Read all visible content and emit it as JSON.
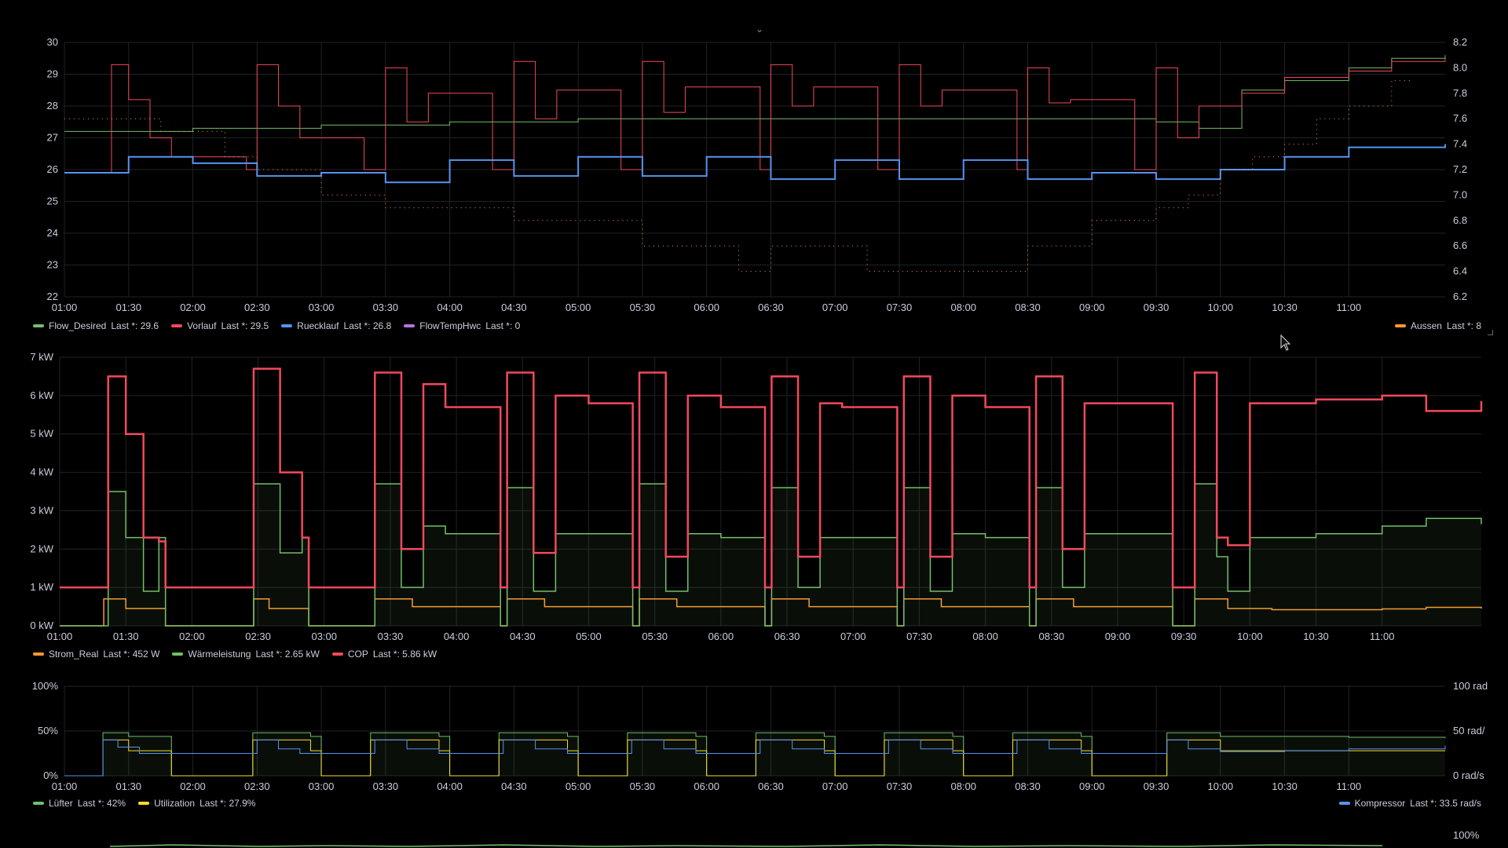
{
  "panels": [
    {
      "id": "temps",
      "x_ticks": [
        "01:00",
        "01:30",
        "02:00",
        "02:30",
        "03:00",
        "03:30",
        "04:00",
        "04:30",
        "05:00",
        "05:30",
        "06:00",
        "06:30",
        "07:00",
        "07:30",
        "08:00",
        "08:30",
        "09:00",
        "09:30",
        "10:00",
        "10:30",
        "11:00"
      ],
      "y_left_ticks": [
        "22",
        "23",
        "24",
        "25",
        "26",
        "27",
        "28",
        "29",
        "30"
      ],
      "y_right_ticks": [
        "6.2",
        "6.4",
        "6.6",
        "6.8",
        "7.0",
        "7.2",
        "7.4",
        "7.6",
        "7.8",
        "8.0",
        "8.2"
      ],
      "legend_left": [
        {
          "name": "Flow_Desired",
          "value": "Last *: 29.6",
          "color": "#73bf69"
        },
        {
          "name": "Vorlauf",
          "value": "Last *: 29.5",
          "color": "#f2495c"
        },
        {
          "name": "Ruecklauf",
          "value": "Last *: 26.8",
          "color": "#5794f2"
        },
        {
          "name": "FlowTempHwc",
          "value": "Last *: 0",
          "color": "#b877d9"
        }
      ],
      "legend_right": [
        {
          "name": "Aussen",
          "value": "Last *: 8",
          "color": "#ff9830"
        }
      ]
    },
    {
      "id": "power",
      "x_ticks": [
        "01:00",
        "01:30",
        "02:00",
        "02:30",
        "03:00",
        "03:30",
        "04:00",
        "04:30",
        "05:00",
        "05:30",
        "06:00",
        "06:30",
        "07:00",
        "07:30",
        "08:00",
        "08:30",
        "09:00",
        "09:30",
        "10:00",
        "10:30",
        "11:00"
      ],
      "y_left_ticks": [
        "0 kW",
        "1 kW",
        "2 kW",
        "3 kW",
        "4 kW",
        "5 kW",
        "6 kW",
        "7 kW"
      ],
      "legend_left": [
        {
          "name": "Strom_Real",
          "value": "Last *: 452 W",
          "color": "#ff9830"
        },
        {
          "name": "Wärmeleistung",
          "value": "Last *: 2.65 kW",
          "color": "#73bf69"
        },
        {
          "name": "COP",
          "value": "Last *: 5.86 kW",
          "color": "#f2495c"
        }
      ]
    },
    {
      "id": "util",
      "x_ticks": [
        "01:00",
        "01:30",
        "02:00",
        "02:30",
        "03:00",
        "03:30",
        "04:00",
        "04:30",
        "05:00",
        "05:30",
        "06:00",
        "06:30",
        "07:00",
        "07:30",
        "08:00",
        "08:30",
        "09:00",
        "09:30",
        "10:00",
        "10:30",
        "11:00"
      ],
      "y_left_ticks": [
        "0%",
        "50%",
        "100%"
      ],
      "y_right_ticks": [
        "0 rad/s",
        "50 rad/",
        "100 rad"
      ],
      "legend_left": [
        {
          "name": "Lüfter",
          "value": "Last *: 42%",
          "color": "#73bf69"
        },
        {
          "name": "Utilization",
          "value": "Last *: 27.9%",
          "color": "#fade2a"
        }
      ],
      "legend_right": [
        {
          "name": "Kompressor",
          "value": "Last *: 33.5 rad/s",
          "color": "#5794f2"
        }
      ]
    },
    {
      "id": "bottom",
      "y_right_ticks": [
        "100%"
      ]
    }
  ],
  "chart_data": [
    {
      "type": "line",
      "x_unit": "time",
      "x_range": [
        "01:00",
        "11:45"
      ],
      "ylim_left": [
        22,
        30
      ],
      "ylim_right": [
        6.2,
        8.2
      ],
      "grid": true,
      "legend_placement": "bottom",
      "series": [
        {
          "name": "Flow_Desired",
          "axis": "left",
          "x": [
            "01:00",
            "02:00",
            "03:00",
            "04:00",
            "05:00",
            "06:00",
            "07:00",
            "08:00",
            "09:00",
            "09:30",
            "09:50",
            "10:10",
            "10:30",
            "11:00",
            "11:20",
            "11:45"
          ],
          "values": [
            27.2,
            27.3,
            27.4,
            27.5,
            27.6,
            27.6,
            27.6,
            27.6,
            27.6,
            27.5,
            27.3,
            28.5,
            28.8,
            29.2,
            29.5,
            29.6
          ]
        },
        {
          "name": "Vorlauf",
          "axis": "left",
          "x": [
            "01:00",
            "01:18",
            "01:22",
            "01:30",
            "01:40",
            "01:50",
            "02:25",
            "02:30",
            "02:40",
            "02:50",
            "03:20",
            "03:30",
            "03:40",
            "03:50",
            "04:20",
            "04:30",
            "04:40",
            "04:50",
            "05:20",
            "05:30",
            "05:40",
            "05:50",
            "06:25",
            "06:30",
            "06:40",
            "06:50",
            "07:20",
            "07:30",
            "07:40",
            "07:50",
            "08:25",
            "08:30",
            "08:40",
            "08:50",
            "09:20",
            "09:30",
            "09:40",
            "09:50",
            "10:10",
            "10:30",
            "11:00",
            "11:20",
            "11:45"
          ],
          "values": [
            25.9,
            25.9,
            29.3,
            28.2,
            27.0,
            26.4,
            26.0,
            29.3,
            28.0,
            27.0,
            26.0,
            29.2,
            27.5,
            28.4,
            26.0,
            29.4,
            27.6,
            28.5,
            26.0,
            29.4,
            27.8,
            28.6,
            26.0,
            29.3,
            28.0,
            28.6,
            26.0,
            29.3,
            28.0,
            28.5,
            26.0,
            29.2,
            28.1,
            28.2,
            26.0,
            29.2,
            27.0,
            28.0,
            28.4,
            28.9,
            29.1,
            29.4,
            29.5
          ]
        },
        {
          "name": "Ruecklauf",
          "axis": "left",
          "x": [
            "01:00",
            "01:30",
            "02:00",
            "02:30",
            "03:00",
            "03:30",
            "04:00",
            "04:30",
            "05:00",
            "05:30",
            "06:00",
            "06:30",
            "07:00",
            "07:30",
            "08:00",
            "08:30",
            "09:00",
            "09:30",
            "10:00",
            "10:30",
            "11:00",
            "11:45"
          ],
          "values": [
            25.9,
            26.4,
            26.2,
            25.8,
            25.9,
            25.6,
            26.3,
            25.8,
            26.4,
            25.8,
            26.4,
            25.7,
            26.3,
            25.7,
            26.3,
            25.7,
            25.9,
            25.7,
            26.0,
            26.4,
            26.7,
            26.8
          ]
        },
        {
          "name": "FlowTempHwc",
          "axis": "left",
          "x": [],
          "values": []
        },
        {
          "name": "Aussen",
          "axis": "right",
          "x": [
            "01:00",
            "01:30",
            "01:45",
            "02:15",
            "02:30",
            "03:00",
            "03:30",
            "04:30",
            "05:30",
            "06:15",
            "06:30",
            "07:15",
            "08:30",
            "09:00",
            "09:30",
            "09:45",
            "10:00",
            "10:15",
            "10:30",
            "10:45",
            "11:00",
            "11:20",
            "11:30"
          ],
          "values": [
            7.6,
            7.6,
            7.5,
            7.3,
            7.2,
            7.0,
            6.9,
            6.8,
            6.6,
            6.4,
            6.6,
            6.4,
            6.6,
            6.8,
            6.9,
            7.0,
            7.2,
            7.3,
            7.4,
            7.6,
            7.7,
            7.9,
            7.9
          ]
        }
      ]
    },
    {
      "type": "area",
      "x_unit": "time",
      "x_range": [
        "01:00",
        "11:45"
      ],
      "ylim": [
        0,
        7
      ],
      "y_unit": "kW",
      "grid": true,
      "legend_placement": "bottom",
      "series": [
        {
          "name": "Strom_Real",
          "x": [
            "01:00",
            "01:18",
            "01:20",
            "01:30",
            "01:45",
            "01:48",
            "02:25",
            "02:28",
            "02:35",
            "02:50",
            "02:53",
            "03:20",
            "03:23",
            "03:40",
            "03:55",
            "04:20",
            "04:23",
            "04:40",
            "05:00",
            "05:20",
            "05:23",
            "05:40",
            "06:00",
            "06:20",
            "06:23",
            "06:40",
            "06:55",
            "07:20",
            "07:23",
            "07:40",
            "08:00",
            "08:20",
            "08:23",
            "08:40",
            "09:00",
            "09:25",
            "09:30",
            "09:35",
            "09:50",
            "10:10",
            "10:30",
            "11:00",
            "11:20",
            "11:45"
          ],
          "values": [
            0,
            0,
            0.7,
            0.45,
            0.45,
            0,
            0,
            0.7,
            0.45,
            0.45,
            0,
            0,
            0.7,
            0.5,
            0.5,
            0,
            0.7,
            0.5,
            0.5,
            0,
            0.7,
            0.5,
            0.5,
            0,
            0.7,
            0.5,
            0.5,
            0,
            0.7,
            0.5,
            0.5,
            0,
            0.7,
            0.5,
            0.5,
            0,
            0,
            0.7,
            0.45,
            0.42,
            0.42,
            0.44,
            0.48,
            0.45
          ]
        },
        {
          "name": "Wärmeleistung",
          "x": [
            "01:00",
            "01:18",
            "01:22",
            "01:30",
            "01:38",
            "01:45",
            "01:48",
            "02:25",
            "02:28",
            "02:40",
            "02:50",
            "02:53",
            "03:20",
            "03:23",
            "03:35",
            "03:45",
            "03:55",
            "04:20",
            "04:23",
            "04:35",
            "04:45",
            "05:00",
            "05:20",
            "05:23",
            "05:35",
            "05:45",
            "06:00",
            "06:20",
            "06:23",
            "06:35",
            "06:45",
            "06:55",
            "07:20",
            "07:23",
            "07:35",
            "07:45",
            "08:00",
            "08:20",
            "08:23",
            "08:35",
            "08:45",
            "09:25",
            "09:30",
            "09:35",
            "09:45",
            "09:50",
            "10:00",
            "10:30",
            "11:00",
            "11:20",
            "11:45"
          ],
          "values": [
            0,
            0,
            3.5,
            2.3,
            0.9,
            2.3,
            0,
            0,
            3.7,
            1.9,
            2.3,
            0,
            0,
            3.7,
            1.0,
            2.6,
            2.4,
            0,
            3.6,
            0.9,
            2.4,
            2.4,
            0,
            3.7,
            0.9,
            2.4,
            2.3,
            0,
            3.6,
            1.0,
            2.3,
            2.3,
            0,
            3.6,
            0.9,
            2.4,
            2.3,
            0,
            3.6,
            1.0,
            2.4,
            0,
            0,
            3.7,
            1.8,
            0.9,
            2.3,
            2.4,
            2.6,
            2.8,
            2.65
          ]
        },
        {
          "name": "COP",
          "x": [
            "01:00",
            "01:18",
            "01:22",
            "01:30",
            "01:38",
            "01:45",
            "01:48",
            "02:25",
            "02:28",
            "02:40",
            "02:50",
            "02:53",
            "03:20",
            "03:23",
            "03:35",
            "03:45",
            "03:55",
            "04:20",
            "04:23",
            "04:35",
            "04:45",
            "05:00",
            "05:20",
            "05:23",
            "05:35",
            "05:45",
            "06:00",
            "06:20",
            "06:23",
            "06:35",
            "06:45",
            "06:55",
            "07:20",
            "07:23",
            "07:35",
            "07:45",
            "08:00",
            "08:20",
            "08:23",
            "08:35",
            "08:45",
            "09:25",
            "09:30",
            "09:35",
            "09:45",
            "09:50",
            "10:00",
            "10:30",
            "11:00",
            "11:20",
            "11:45"
          ],
          "values": [
            1.0,
            1.0,
            6.5,
            5.0,
            2.3,
            2.2,
            1.0,
            1.0,
            6.7,
            4.0,
            2.3,
            1.0,
            1.0,
            6.6,
            2.0,
            6.3,
            5.7,
            1.0,
            6.6,
            1.9,
            6.0,
            5.8,
            1.0,
            6.6,
            1.8,
            6.0,
            5.7,
            1.0,
            6.5,
            1.8,
            5.8,
            5.7,
            1.0,
            6.5,
            1.8,
            6.0,
            5.7,
            1.0,
            6.5,
            2.0,
            5.8,
            1.0,
            1.0,
            6.6,
            2.3,
            2.1,
            5.8,
            5.9,
            6.0,
            5.6,
            5.86
          ]
        }
      ]
    },
    {
      "type": "area",
      "x_unit": "time",
      "x_range": [
        "01:00",
        "11:45"
      ],
      "ylim_left": [
        0,
        100
      ],
      "ylim_right": [
        0,
        100
      ],
      "grid": true,
      "legend_placement": "bottom",
      "series": [
        {
          "name": "Lüfter",
          "axis": "left",
          "x": [
            "01:00",
            "01:15",
            "01:18",
            "01:30",
            "01:48",
            "01:50",
            "02:25",
            "02:28",
            "02:55",
            "03:00",
            "03:20",
            "03:23",
            "03:55",
            "04:00",
            "04:20",
            "04:23",
            "04:55",
            "05:00",
            "05:20",
            "05:23",
            "05:55",
            "06:00",
            "06:20",
            "06:23",
            "06:55",
            "07:00",
            "07:20",
            "07:23",
            "07:55",
            "08:00",
            "08:20",
            "08:23",
            "08:55",
            "09:00",
            "09:25",
            "09:30",
            "09:35",
            "10:00",
            "10:30",
            "11:00",
            "11:45"
          ],
          "values": [
            0,
            0,
            48,
            44,
            44,
            0,
            0,
            48,
            44,
            0,
            0,
            48,
            44,
            0,
            0,
            48,
            44,
            0,
            0,
            48,
            44,
            0,
            0,
            48,
            44,
            0,
            0,
            48,
            44,
            0,
            0,
            48,
            44,
            0,
            0,
            0,
            48,
            44,
            44,
            43,
            42
          ]
        },
        {
          "name": "Utilization",
          "axis": "left",
          "x": [
            "01:00",
            "01:15",
            "01:18",
            "01:30",
            "01:48",
            "01:50",
            "02:25",
            "02:28",
            "02:55",
            "03:00",
            "03:20",
            "03:23",
            "03:55",
            "04:00",
            "04:20",
            "04:23",
            "04:55",
            "05:00",
            "05:20",
            "05:23",
            "05:55",
            "06:00",
            "06:20",
            "06:23",
            "06:55",
            "07:00",
            "07:20",
            "07:23",
            "07:55",
            "08:00",
            "08:20",
            "08:23",
            "08:55",
            "09:00",
            "09:25",
            "09:30",
            "09:35",
            "10:00",
            "10:30",
            "11:00",
            "11:45"
          ],
          "values": [
            0,
            0,
            40,
            28,
            28,
            0,
            0,
            40,
            28,
            0,
            0,
            40,
            28,
            0,
            0,
            40,
            28,
            0,
            0,
            40,
            28,
            0,
            0,
            40,
            28,
            0,
            0,
            40,
            28,
            0,
            0,
            40,
            28,
            0,
            0,
            0,
            40,
            28,
            28,
            28,
            27.9
          ]
        },
        {
          "name": "Kompressor",
          "axis": "right",
          "x": [
            "01:00",
            "01:18",
            "01:25",
            "01:35",
            "01:50",
            "02:25",
            "02:30",
            "02:40",
            "02:50",
            "03:20",
            "03:25",
            "03:40",
            "03:55",
            "04:20",
            "04:25",
            "04:40",
            "04:55",
            "05:20",
            "05:25",
            "05:40",
            "05:55",
            "06:20",
            "06:25",
            "06:40",
            "06:55",
            "07:20",
            "07:25",
            "07:40",
            "07:55",
            "08:20",
            "08:25",
            "08:40",
            "08:55",
            "09:30",
            "09:35",
            "09:45",
            "10:00",
            "10:30",
            "11:00",
            "11:45"
          ],
          "values": [
            0,
            40,
            32,
            25,
            25,
            25,
            40,
            30,
            25,
            25,
            40,
            30,
            25,
            25,
            40,
            30,
            25,
            25,
            40,
            30,
            25,
            25,
            40,
            30,
            25,
            25,
            40,
            30,
            25,
            25,
            40,
            30,
            25,
            25,
            40,
            30,
            27,
            28,
            30,
            33.5
          ]
        }
      ]
    }
  ]
}
